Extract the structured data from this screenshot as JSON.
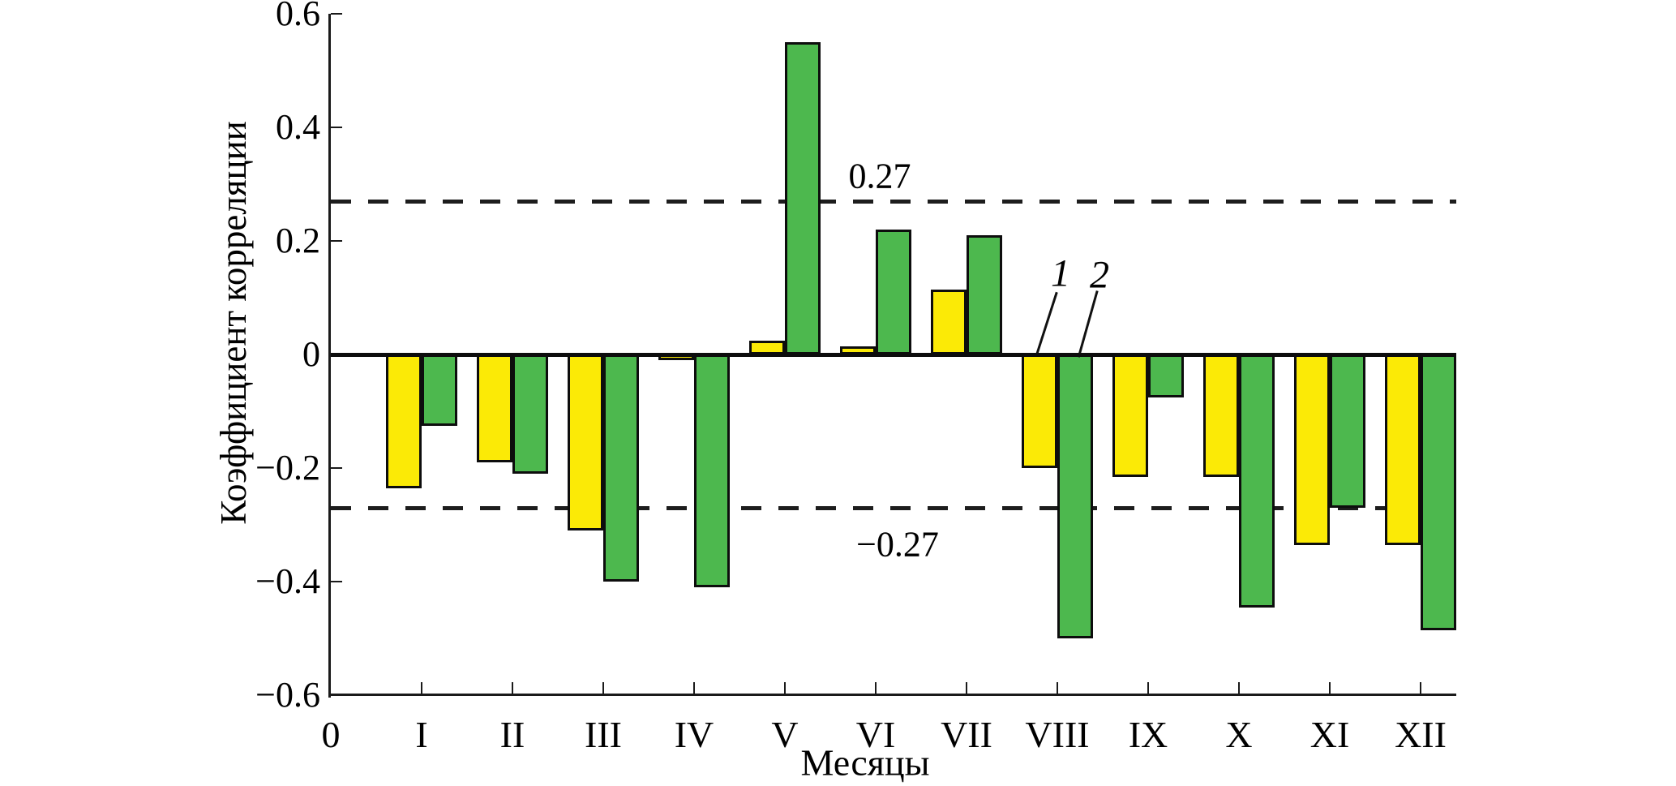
{
  "figure": {
    "background": "#ffffff",
    "axis_color": "#1a1a1a",
    "text_color": "#000000"
  },
  "chart_data": {
    "type": "bar",
    "title": "",
    "xlabel": "Месяцы",
    "ylabel": "Коэффициент корреляции",
    "ylim": [
      -0.6,
      0.6
    ],
    "grid": false,
    "legend_position": "in-plot numeric annotations with leader lines",
    "x_origin_label": "0",
    "yticks": [
      0.6,
      0.4,
      0.2,
      0,
      -0.2,
      -0.4,
      -0.6
    ],
    "ytick_labels": [
      "0.6",
      "0.4",
      "0.2",
      "0",
      "−0.2",
      "−0.4",
      "−0.6"
    ],
    "categories": [
      "I",
      "II",
      "III",
      "IV",
      "V",
      "VI",
      "VII",
      "VIII",
      "IX",
      "X",
      "XI",
      "XII"
    ],
    "series": [
      {
        "name": "1",
        "color": "#FBEA06",
        "values": [
          -0.235,
          -0.19,
          -0.31,
          -0.01,
          0.025,
          0.015,
          0.115,
          -0.2,
          -0.215,
          -0.215,
          -0.335,
          -0.335
        ]
      },
      {
        "name": "2",
        "color": "#4DB84E",
        "values": [
          -0.125,
          -0.21,
          -0.4,
          -0.41,
          0.55,
          0.22,
          0.21,
          -0.5,
          -0.075,
          -0.445,
          -0.27,
          -0.485
        ]
      }
    ],
    "thresholds": [
      {
        "value": 0.27,
        "label": "0.27",
        "style": "dashed"
      },
      {
        "value": -0.27,
        "label": "−0.27",
        "style": "dashed"
      }
    ]
  }
}
